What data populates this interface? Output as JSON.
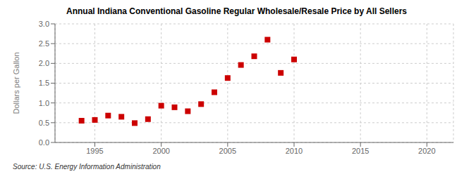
{
  "chart_data": {
    "type": "scatter",
    "title": "Annual Indiana Conventional Gasoline Regular Wholesale/Resale Price by All Sellers",
    "ylabel": "Dollars per Gallon",
    "source": "Source: U.S. Energy Information Administration",
    "x": [
      1994,
      1995,
      1996,
      1997,
      1998,
      1999,
      2000,
      2001,
      2002,
      2003,
      2004,
      2005,
      2006,
      2007,
      2008,
      2009,
      2010
    ],
    "values": [
      0.55,
      0.57,
      0.68,
      0.65,
      0.49,
      0.59,
      0.93,
      0.89,
      0.79,
      0.97,
      1.27,
      1.63,
      1.96,
      2.18,
      2.6,
      1.76,
      2.1
    ],
    "color": "#cc0000",
    "marker": "square",
    "xlim": [
      1992,
      2022
    ],
    "ylim": [
      0.0,
      3.0
    ],
    "xticks": [
      1995,
      2000,
      2005,
      2010,
      2015,
      2020
    ],
    "yticks": [
      {
        "value": 0.0,
        "label": "0.0"
      },
      0.5,
      {
        "value": 1.0,
        "label": "1.0"
      },
      1.5,
      {
        "value": 2.0,
        "label": "2.0"
      },
      2.5,
      {
        "value": 3.0,
        "label": "3.0"
      }
    ],
    "grid": true
  }
}
